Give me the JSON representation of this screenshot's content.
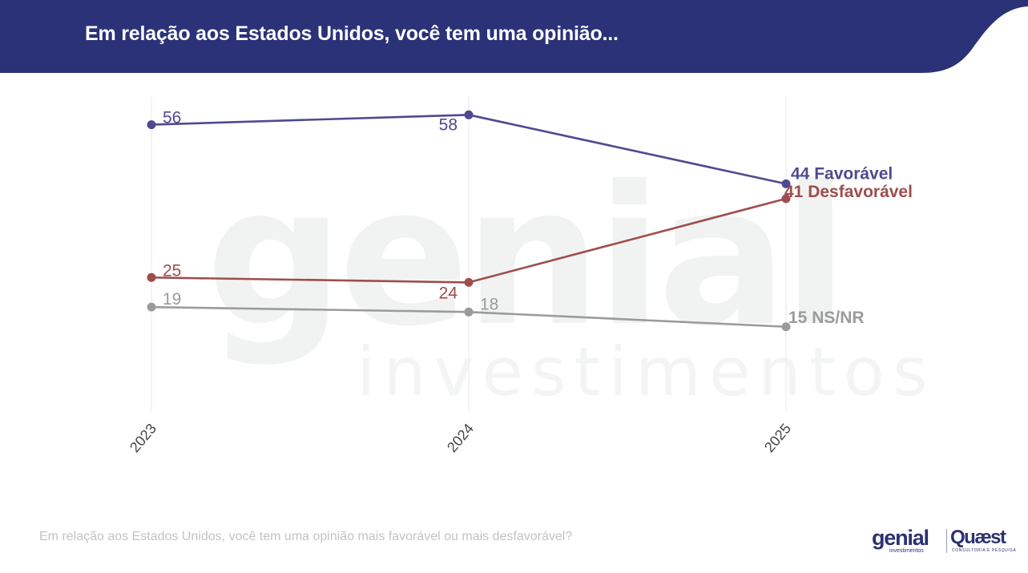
{
  "header": {
    "title": "Em relação aos Estados Unidos, você tem uma opinião...",
    "background_color": "#2b3278"
  },
  "watermark": {
    "brand": "genial",
    "subtitle": "investimentos"
  },
  "chart_data": {
    "type": "line",
    "title": "Em relação aos Estados Unidos, você tem uma opinião...",
    "categories": [
      "2023",
      "2024",
      "2025"
    ],
    "ylim": [
      0,
      70
    ],
    "grid": "vertical",
    "xlabel": "",
    "ylabel": "",
    "series": [
      {
        "name": "Favorável",
        "values": [
          56,
          58,
          44
        ],
        "color": "#4e4a8f",
        "end_label": "44 Favorável"
      },
      {
        "name": "Desfavorável",
        "values": [
          25,
          24,
          41
        ],
        "color": "#9e4d4d",
        "end_label": "41 Desfavorável"
      },
      {
        "name": "NS/NR",
        "values": [
          19,
          18,
          15
        ],
        "color": "#9b9b9b",
        "end_label": "15 NS/NR"
      }
    ]
  },
  "footer": {
    "question": "Em relação aos Estados Unidos, você tem uma opinião mais favorável ou mais desfavorável?"
  },
  "logos": {
    "genial_name": "genial",
    "genial_sub": "investimentos",
    "quaest_name": "Quæst",
    "quaest_sub": "CONSULTORIA E PESQUISA"
  }
}
